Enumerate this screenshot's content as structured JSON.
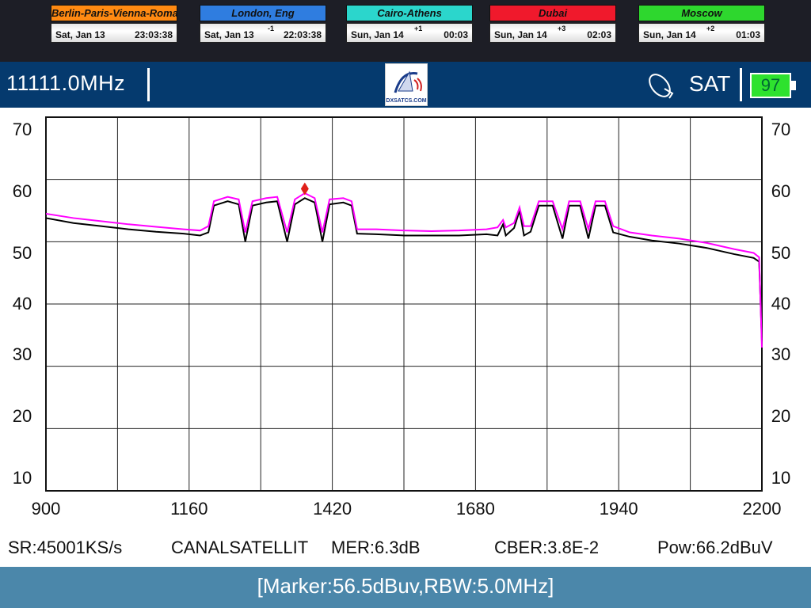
{
  "clocks": [
    {
      "city": "Berlin-Paris-Vienna-Roma",
      "date": "Sat, Jan 13",
      "offset": "",
      "time": "23:03:38",
      "color": "#ff8a12"
    },
    {
      "city": "London, Eng",
      "date": "Sat, Jan 13",
      "offset": "-1",
      "time": "22:03:38",
      "color": "#2f7de0"
    },
    {
      "city": "Cairo-Athens",
      "date": "Sun, Jan 14",
      "offset": "+1",
      "time": "00:03",
      "color": "#2bd6cc"
    },
    {
      "city": "Dubai",
      "date": "Sun, Jan 14",
      "offset": "+3",
      "time": "02:03",
      "color": "#f0192c"
    },
    {
      "city": "Moscow",
      "date": "Sun, Jan 14",
      "offset": "+2",
      "time": "01:03",
      "color": "#2ed72e"
    }
  ],
  "header": {
    "frequency": "11111.0MHz",
    "logo_text": "DXSATCS.COM",
    "mode": "SAT",
    "battery": "97",
    "satellite_icon": "satellite-dish-icon"
  },
  "status": {
    "sr": "SR:45001KS/s",
    "channel": "CANALSATELLIT",
    "mer": "MER:6.3dB",
    "cber": "CBER:3.8E-2",
    "pow": "Pow:66.2dBuV"
  },
  "footer": {
    "marker": "[Marker:56.5dBuv,RBW:5.0MHz]"
  },
  "chart_data": {
    "type": "line",
    "xlim": [
      900,
      2200
    ],
    "ylim": [
      10,
      70
    ],
    "grid": true,
    "x_ticks": [
      "900",
      "1160",
      "1420",
      "1680",
      "1940",
      "2200"
    ],
    "y_ticks": [
      "70",
      "60",
      "50",
      "40",
      "30",
      "20",
      "10"
    ],
    "x": [
      900,
      950,
      1000,
      1050,
      1100,
      1150,
      1180,
      1195,
      1205,
      1230,
      1250,
      1262,
      1275,
      1300,
      1320,
      1338,
      1352,
      1370,
      1388,
      1402,
      1415,
      1440,
      1455,
      1465,
      1500,
      1550,
      1600,
      1650,
      1700,
      1720,
      1730,
      1735,
      1750,
      1760,
      1768,
      1780,
      1795,
      1820,
      1838,
      1850,
      1870,
      1885,
      1898,
      1915,
      1930,
      1960,
      2000,
      2050,
      2100,
      2150,
      2185,
      2195,
      2200
    ],
    "series": [
      {
        "color": "#ff00ff",
        "values": [
          54.5,
          53.8,
          53.3,
          52.8,
          52.4,
          52.0,
          51.8,
          52.5,
          56.5,
          57.2,
          56.8,
          51.5,
          56.5,
          57.0,
          57.2,
          51.5,
          56.8,
          57.8,
          57.0,
          51.5,
          56.8,
          57.0,
          56.5,
          52.0,
          52.0,
          51.8,
          51.7,
          51.8,
          52.0,
          52.3,
          53.5,
          52.3,
          53.0,
          55.5,
          52.5,
          52.5,
          56.5,
          56.5,
          52.0,
          56.5,
          56.5,
          52.0,
          56.5,
          56.5,
          52.5,
          51.5,
          51.0,
          50.5,
          49.8,
          48.8,
          48.2,
          47.5,
          33.0
        ]
      },
      {
        "color": "#000000",
        "values": [
          53.8,
          53.0,
          52.5,
          52.0,
          51.6,
          51.3,
          51.0,
          51.5,
          55.8,
          56.5,
          56.0,
          50.0,
          55.8,
          56.3,
          56.5,
          50.0,
          56.0,
          57.0,
          56.3,
          50.0,
          56.0,
          56.3,
          55.8,
          51.3,
          51.2,
          51.0,
          51.0,
          51.0,
          51.2,
          51.0,
          52.8,
          51.0,
          52.2,
          55.0,
          51.0,
          51.6,
          55.8,
          55.8,
          50.5,
          55.8,
          55.8,
          50.5,
          55.8,
          55.8,
          51.5,
          50.8,
          50.2,
          49.7,
          49.0,
          48.0,
          47.4,
          46.8,
          34.0
        ]
      }
    ],
    "marker": {
      "x": 1370,
      "y": 58.5,
      "color": "#e0201a"
    }
  }
}
